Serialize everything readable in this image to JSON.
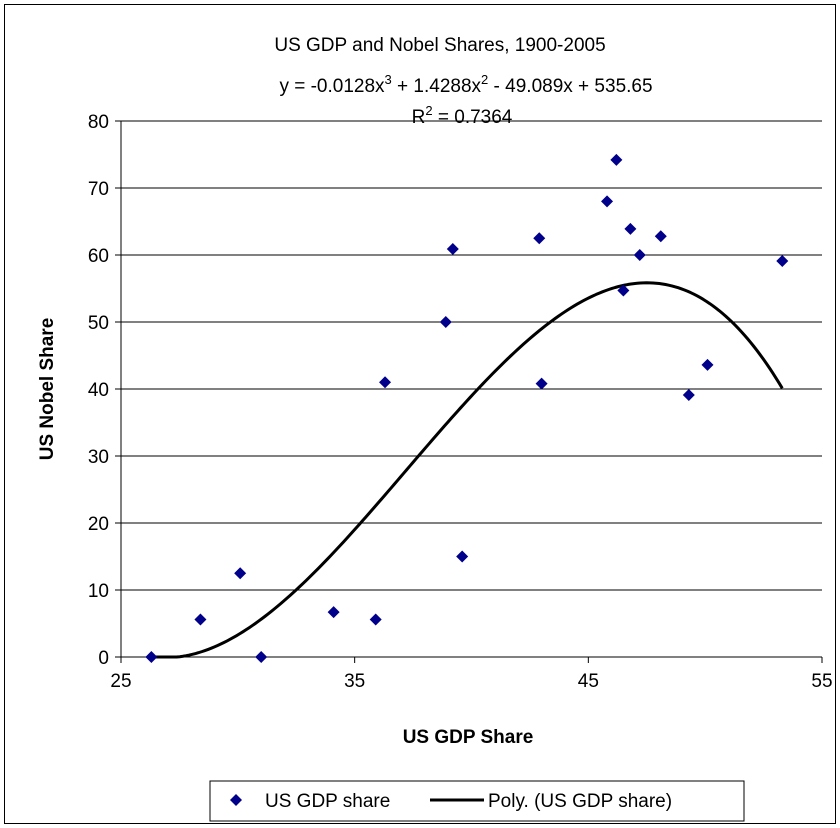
{
  "chart_data": {
    "type": "scatter",
    "title": "US GDP and Nobel Shares, 1900-2005",
    "trendline_equation": {
      "prefix": "y = -0.0128x",
      "exp1": "3",
      "mid1": " + 1.4288x",
      "exp2": "2",
      "suffix": " - 49.089x + 535.65"
    },
    "r_squared": {
      "prefix": "R",
      "exp": "2",
      "suffix": " = 0.7364"
    },
    "xlabel": "US GDP Share",
    "ylabel": "US Nobel Share",
    "xlim": [
      25,
      55
    ],
    "ylim": [
      0,
      80
    ],
    "x_ticks": [
      25,
      35,
      45,
      55
    ],
    "y_ticks": [
      0,
      10,
      20,
      30,
      40,
      50,
      60,
      70,
      80
    ],
    "grid": "horizontal",
    "legend_position": "bottom",
    "series": [
      {
        "name": "US GDP share",
        "marker": "diamond",
        "color": "#00008B",
        "points": [
          [
            26.3,
            0
          ],
          [
            28.4,
            5.6
          ],
          [
            30.1,
            12.5
          ],
          [
            31.0,
            0
          ],
          [
            34.1,
            6.7
          ],
          [
            35.9,
            5.6
          ],
          [
            36.3,
            41.0
          ],
          [
            38.9,
            50.0
          ],
          [
            39.2,
            60.9
          ],
          [
            39.6,
            15.0
          ],
          [
            42.9,
            62.5
          ],
          [
            43.0,
            40.8
          ],
          [
            45.8,
            68.0
          ],
          [
            46.2,
            74.2
          ],
          [
            46.5,
            54.7
          ],
          [
            46.8,
            63.9
          ],
          [
            47.2,
            60.0
          ],
          [
            48.1,
            62.8
          ],
          [
            49.3,
            39.1
          ],
          [
            50.1,
            43.6
          ],
          [
            53.3,
            59.1
          ]
        ]
      },
      {
        "name": "Poly. (US GDP share)",
        "type": "trendline",
        "color": "#000000",
        "coefficients": [
          -0.0128,
          1.4288,
          -49.089,
          535.65
        ],
        "x_range": [
          26.3,
          53.3
        ]
      }
    ]
  }
}
